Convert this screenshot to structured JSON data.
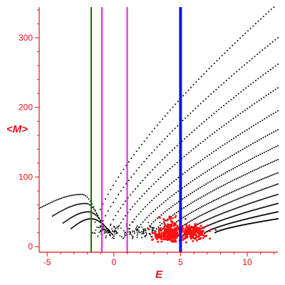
{
  "chart_data": {
    "type": "scatter",
    "title": "",
    "xlabel": "E",
    "ylabel": "<M>",
    "xlim": [
      -5.6,
      12.3
    ],
    "ylim": [
      -8,
      344
    ],
    "x_ticks": [
      -5,
      0,
      5,
      10
    ],
    "y_ticks": [
      0,
      100,
      200,
      300
    ],
    "grid": false,
    "legend": "none",
    "colors": {
      "axes": "#e8101a",
      "points": "#000000",
      "highlight": "#ff1010",
      "green_line": "#0a7d0a",
      "magenta_line": "#e020e0",
      "blue_line": "#1010f0"
    },
    "vertical_lines": [
      {
        "x": -1.7,
        "color": "green"
      },
      {
        "x": -0.9,
        "color": "magenta"
      },
      {
        "x": 1.0,
        "color": "magenta"
      },
      {
        "x": 5.0,
        "color": "blue"
      }
    ],
    "series": [
      {
        "style": "black-points",
        "curves": [
          {
            "x0": -1.6,
            "y0": 20,
            "x1": 12.0,
            "y1": 344
          },
          {
            "x0": -1.2,
            "y0": 15,
            "x1": 12.3,
            "y1": 300
          },
          {
            "x0": -0.6,
            "y0": 13,
            "x1": 12.3,
            "y1": 262
          },
          {
            "x0": 0.0,
            "y0": 12,
            "x1": 12.3,
            "y1": 228
          },
          {
            "x0": 0.7,
            "y0": 12,
            "x1": 12.3,
            "y1": 195
          },
          {
            "x0": 1.4,
            "y0": 12,
            "x1": 12.3,
            "y1": 168
          },
          {
            "x0": 2.1,
            "y0": 13,
            "x1": 12.3,
            "y1": 145
          },
          {
            "x0": 2.8,
            "y0": 14,
            "x1": 12.3,
            "y1": 125
          },
          {
            "x0": 3.6,
            "y0": 15,
            "x1": 12.3,
            "y1": 106
          },
          {
            "x0": 4.4,
            "y0": 16,
            "x1": 12.3,
            "y1": 90
          },
          {
            "x0": 5.2,
            "y0": 17,
            "x1": 12.3,
            "y1": 75
          },
          {
            "x0": 6.0,
            "y0": 18,
            "x1": 12.3,
            "y1": 62
          },
          {
            "x0": 6.8,
            "y0": 19,
            "x1": 12.3,
            "y1": 50
          },
          {
            "x0": 7.6,
            "y0": 20,
            "x1": 12.3,
            "y1": 40
          }
        ],
        "arches": [
          {
            "x0": -5.6,
            "y0": 55,
            "xpk": -2.4,
            "ypk": 75,
            "x1": -0.8,
            "y1": 24
          },
          {
            "x0": -4.6,
            "y0": 44,
            "xpk": -2.1,
            "ypk": 62,
            "x1": -0.6,
            "y1": 20
          },
          {
            "x0": -3.8,
            "y0": 34,
            "xpk": -1.9,
            "ypk": 50,
            "x1": -0.3,
            "y1": 17
          },
          {
            "x0": -3.2,
            "y0": 26,
            "xpk": -1.7,
            "ypk": 40,
            "x1": 0.0,
            "y1": 15
          }
        ]
      },
      {
        "style": "red-cluster",
        "clusters": [
          {
            "cx": 4.2,
            "cy": 18,
            "sx": 0.45,
            "sy": 6,
            "n": 240
          },
          {
            "cx": 5.9,
            "cy": 20,
            "sx": 0.55,
            "sy": 5,
            "n": 200
          },
          {
            "cx": 4.4,
            "cy": 32,
            "sx": 0.6,
            "sy": 9,
            "n": 40
          },
          {
            "cx": 3.3,
            "cy": 16,
            "sx": 0.3,
            "sy": 4,
            "n": 20
          }
        ]
      }
    ]
  }
}
